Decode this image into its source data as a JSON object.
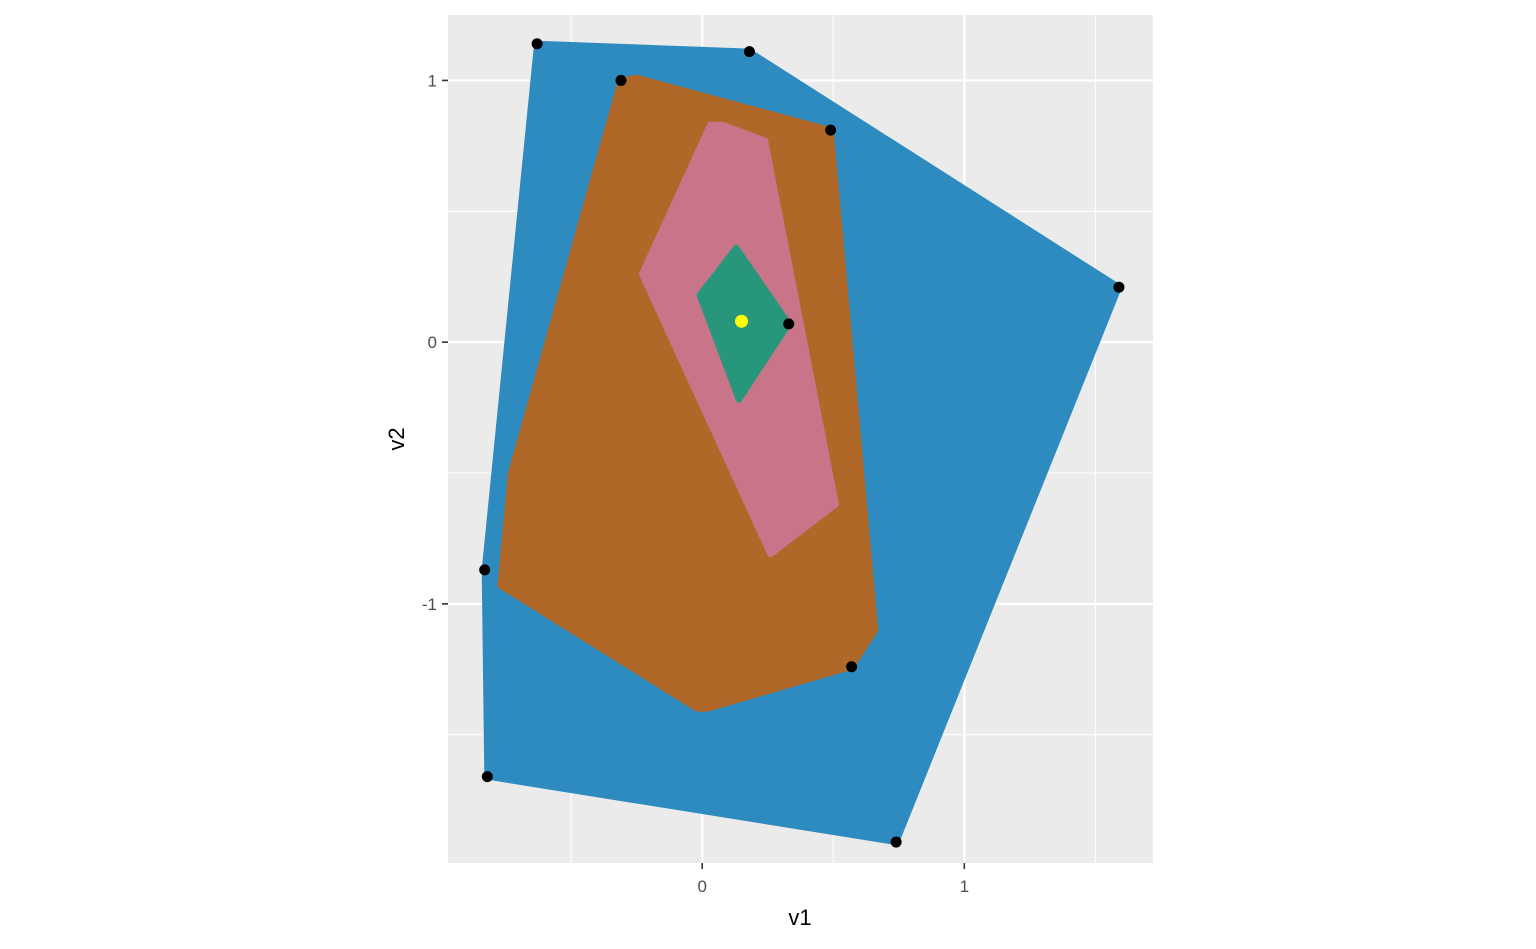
{
  "chart_data": {
    "type": "scatter",
    "title": "",
    "xlabel": "v1",
    "ylabel": "v2",
    "xlim": [
      -0.97,
      1.72
    ],
    "ylim": [
      -1.99,
      1.25
    ],
    "x_ticks": [
      0,
      1
    ],
    "x_tick_labels": [
      "0",
      "1"
    ],
    "y_ticks": [
      -1,
      0,
      1
    ],
    "y_tick_labels": [
      "-1",
      "0",
      "1"
    ],
    "x_minor": [
      -0.5,
      0.5,
      1.5
    ],
    "y_minor": [
      -1.5,
      -0.5,
      0.5
    ],
    "grid": true,
    "legend": "none",
    "panel_color": "#EBEBEB",
    "points": [
      {
        "x": -0.63,
        "y": 1.14
      },
      {
        "x": 0.18,
        "y": 1.11
      },
      {
        "x": -0.31,
        "y": 1.0
      },
      {
        "x": 0.49,
        "y": 0.81
      },
      {
        "x": 1.59,
        "y": 0.21
      },
      {
        "x": 0.33,
        "y": 0.07
      },
      {
        "x": -0.83,
        "y": -0.87
      },
      {
        "x": 0.57,
        "y": -1.24
      },
      {
        "x": -0.82,
        "y": -1.66
      },
      {
        "x": 0.74,
        "y": -1.91
      }
    ],
    "point_color": "#000000",
    "center_point": {
      "x": 0.15,
      "y": 0.08,
      "color": "#FFFF00"
    },
    "regions": [
      {
        "color": "#2E8BC0",
        "vertices": [
          [
            -0.63,
            1.14
          ],
          [
            0.18,
            1.11
          ],
          [
            1.59,
            0.21
          ],
          [
            0.74,
            -1.91
          ],
          [
            -0.82,
            -1.66
          ],
          [
            -0.83,
            -0.87
          ]
        ]
      },
      {
        "color": "#B06828",
        "vertices": [
          [
            -0.31,
            1.0
          ],
          [
            -0.25,
            1.01
          ],
          [
            0.49,
            0.81
          ],
          [
            0.66,
            -1.1
          ],
          [
            0.57,
            -1.24
          ],
          [
            0.02,
            -1.4
          ],
          [
            -0.02,
            -1.4
          ],
          [
            -0.77,
            -0.93
          ],
          [
            -0.73,
            -0.5
          ]
        ]
      },
      {
        "color": "#C8758A",
        "vertices": [
          [
            0.03,
            0.83
          ],
          [
            0.08,
            0.83
          ],
          [
            0.24,
            0.77
          ],
          [
            0.51,
            -0.62
          ],
          [
            0.26,
            -0.81
          ],
          [
            -0.23,
            0.26
          ]
        ]
      },
      {
        "color": "#27967A",
        "vertices": [
          [
            0.13,
            0.36
          ],
          [
            0.33,
            0.07
          ],
          [
            0.14,
            -0.22
          ],
          [
            -0.01,
            0.18
          ]
        ]
      }
    ]
  }
}
